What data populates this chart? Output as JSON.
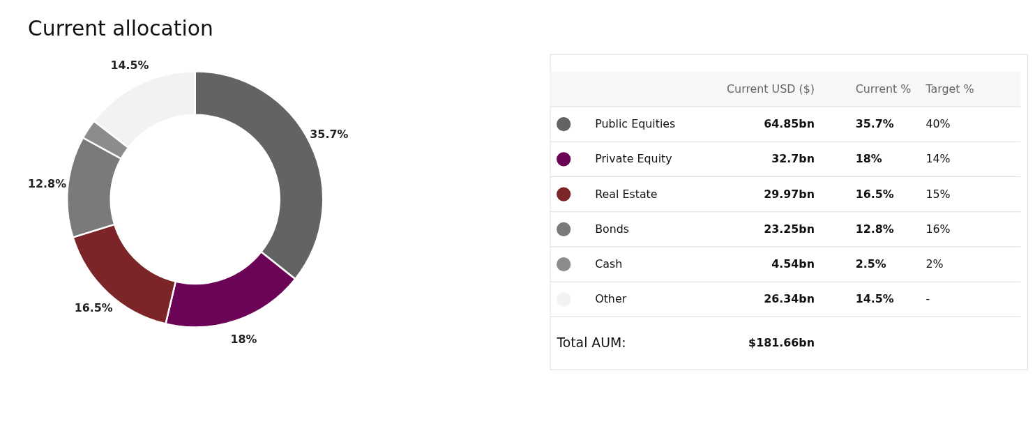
{
  "chart_data": {
    "type": "donut",
    "title": "Current allocation",
    "categories": [
      "Public Equities",
      "Private Equity",
      "Real Estate",
      "Bonds",
      "Cash",
      "Other"
    ],
    "values": [
      35.7,
      18,
      16.5,
      12.8,
      2.5,
      14.5
    ],
    "colors": [
      "#636363",
      "#6b0457",
      "#7b2528",
      "#7a7a7a",
      "#8c8c8c",
      "#f2f2f2"
    ],
    "value_labels": [
      "35.7%",
      "18%",
      "16.5%",
      "12.8%",
      null,
      "14.5%"
    ],
    "legend": "right",
    "annotations": [
      "Current USD ($)",
      "Current %",
      "Target %",
      "64.85bn",
      "35.7%",
      "40%",
      "32.7bn",
      "18%",
      "14%",
      "29.97bn",
      "16.5%",
      "15%",
      "23.25bn",
      "12.8%",
      "16%",
      "4.54bn",
      "2.5%",
      "2%",
      "26.34bn",
      "14.5%",
      "-",
      "Total AUM:",
      "$181.66bn"
    ]
  }
}
